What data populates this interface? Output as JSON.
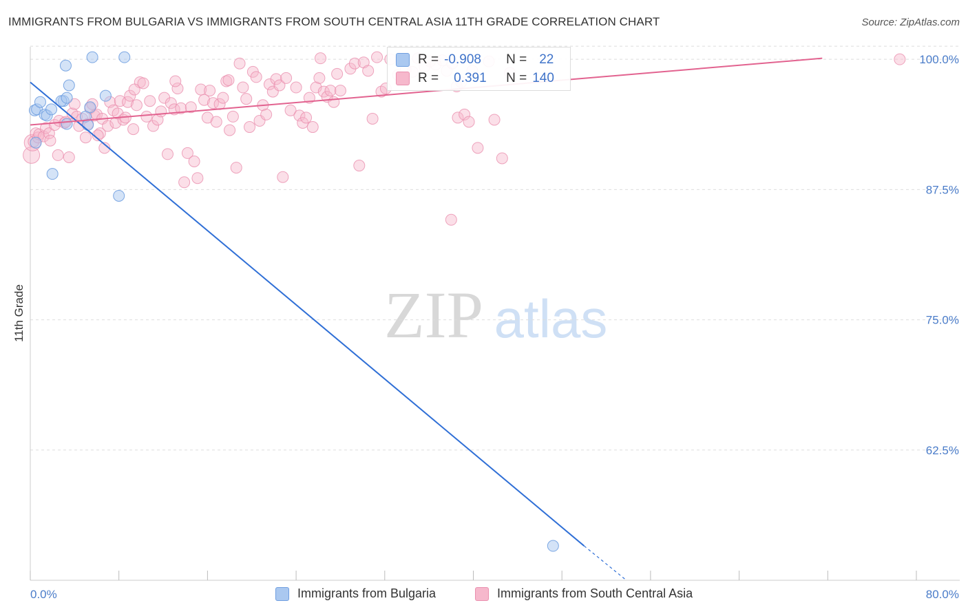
{
  "title": "IMMIGRANTS FROM BULGARIA VS IMMIGRANTS FROM SOUTH CENTRAL ASIA 11TH GRADE CORRELATION CHART",
  "source": "Source: ZipAtlas.com",
  "watermark": {
    "zip": "ZIP",
    "atlas": "atlas"
  },
  "colors": {
    "blue_fill": "#aac8f0",
    "blue_stroke": "#6f9ee0",
    "blue_line": "#2f6fd6",
    "pink_fill": "#f6b8cc",
    "pink_stroke": "#ea8fae",
    "pink_line": "#e2628f",
    "tick_label": "#4a7cc9",
    "grid": "#dddddd"
  },
  "inset_legend": {
    "rows": [
      {
        "r_label": "R =",
        "r_value": "-0.908",
        "n_label": "N =",
        "n_value": "22",
        "color": "blue"
      },
      {
        "r_label": "R =",
        "r_value": "0.391",
        "n_label": "N =",
        "n_value": "140",
        "color": "pink"
      }
    ]
  },
  "bottom_legend": [
    {
      "label": "Immigrants from Bulgaria",
      "color": "blue"
    },
    {
      "label": "Immigrants from South Central Asia",
      "color": "pink"
    }
  ],
  "chart_data": {
    "type": "scatter",
    "title": "IMMIGRANTS FROM BULGARIA VS IMMIGRANTS FROM SOUTH CENTRAL ASIA 11TH GRADE CORRELATION CHART",
    "xlabel": "",
    "ylabel": "11th Grade",
    "xlim": [
      0,
      80
    ],
    "ylim": [
      50,
      101.2
    ],
    "x_tick_labels": [
      "0.0%",
      "80.0%"
    ],
    "y_ticks": [
      {
        "value": 100,
        "label": "100.0%"
      },
      {
        "value": 87.5,
        "label": "87.5%"
      },
      {
        "value": 75,
        "label": "75.0%"
      },
      {
        "value": 62.5,
        "label": "62.5%"
      }
    ],
    "grid": true,
    "legend_position": "bottom",
    "series": [
      {
        "name": "Immigrants from Bulgaria",
        "color": "blue",
        "trend": {
          "x": [
            0,
            50
          ],
          "y": [
            97.8,
            53.3
          ],
          "dashed_to": {
            "x": 53.7,
            "y": 50.1
          }
        },
        "points": [
          [
            0.4,
            95.1
          ],
          [
            0.6,
            95.2
          ],
          [
            0.9,
            95.9
          ],
          [
            1.3,
            94.7
          ],
          [
            1.5,
            94.6
          ],
          [
            1.9,
            95.2
          ],
          [
            3.0,
            96.0
          ],
          [
            3.3,
            93.8
          ],
          [
            2.8,
            96.0
          ],
          [
            3.2,
            99.4
          ],
          [
            3.3,
            96.3
          ],
          [
            3.5,
            97.5
          ],
          [
            5.0,
            94.5
          ],
          [
            5.2,
            93.7
          ],
          [
            5.4,
            95.4
          ],
          [
            5.6,
            100.2
          ],
          [
            6.8,
            96.5
          ],
          [
            8.5,
            100.2
          ],
          [
            0.5,
            92.0
          ],
          [
            2.0,
            89.0
          ],
          [
            8.0,
            86.9
          ],
          [
            47.2,
            53.3
          ]
        ]
      },
      {
        "name": "Immigrants from South Central Asia",
        "color": "pink",
        "trend": {
          "x": [
            0,
            71.5
          ],
          "y": [
            93.7,
            100.1
          ]
        },
        "points": [
          [
            0.1,
            90.8
          ],
          [
            0.2,
            92.0
          ],
          [
            0.3,
            92.1
          ],
          [
            0.5,
            92.9
          ],
          [
            0.7,
            92.5
          ],
          [
            0.8,
            92.8
          ],
          [
            1.2,
            92.6
          ],
          [
            1.4,
            93.4
          ],
          [
            1.7,
            92.9
          ],
          [
            1.8,
            92.2
          ],
          [
            2.2,
            93.7
          ],
          [
            2.5,
            90.8
          ],
          [
            2.6,
            94.1
          ],
          [
            3.1,
            93.9
          ],
          [
            3.2,
            94.0
          ],
          [
            3.5,
            90.6
          ],
          [
            3.8,
            94.8
          ],
          [
            4.0,
            95.7
          ],
          [
            4.2,
            94.5
          ],
          [
            4.4,
            93.6
          ],
          [
            4.7,
            94.3
          ],
          [
            5.0,
            92.5
          ],
          [
            5.2,
            93.8
          ],
          [
            5.4,
            95.3
          ],
          [
            5.6,
            95.7
          ],
          [
            5.8,
            94.6
          ],
          [
            6.0,
            94.7
          ],
          [
            6.3,
            92.9
          ],
          [
            6.5,
            94.3
          ],
          [
            6.7,
            91.5
          ],
          [
            7.0,
            93.6
          ],
          [
            7.2,
            95.9
          ],
          [
            7.5,
            95.1
          ],
          [
            7.7,
            93.9
          ],
          [
            7.9,
            94.8
          ],
          [
            8.1,
            96.0
          ],
          [
            8.4,
            94.2
          ],
          [
            8.6,
            94.4
          ],
          [
            8.8,
            95.9
          ],
          [
            9.0,
            96.5
          ],
          [
            9.3,
            93.3
          ],
          [
            9.6,
            95.6
          ],
          [
            9.9,
            97.8
          ],
          [
            10.2,
            97.7
          ],
          [
            10.5,
            94.5
          ],
          [
            10.8,
            96.0
          ],
          [
            11.1,
            93.6
          ],
          [
            11.5,
            94.2
          ],
          [
            11.8,
            95.0
          ],
          [
            12.1,
            96.3
          ],
          [
            12.4,
            90.9
          ],
          [
            12.7,
            95.8
          ],
          [
            13.0,
            95.2
          ],
          [
            13.3,
            97.2
          ],
          [
            13.6,
            95.3
          ],
          [
            13.9,
            88.2
          ],
          [
            14.2,
            91.0
          ],
          [
            14.5,
            95.4
          ],
          [
            14.8,
            90.2
          ],
          [
            15.1,
            88.6
          ],
          [
            15.4,
            97.1
          ],
          [
            15.7,
            96.1
          ],
          [
            16.0,
            94.4
          ],
          [
            16.2,
            97.0
          ],
          [
            16.5,
            95.8
          ],
          [
            16.8,
            94.0
          ],
          [
            17.1,
            95.7
          ],
          [
            17.4,
            96.3
          ],
          [
            17.7,
            97.9
          ],
          [
            18.0,
            93.2
          ],
          [
            18.3,
            94.5
          ],
          [
            18.6,
            89.6
          ],
          [
            18.9,
            99.6
          ],
          [
            19.2,
            97.3
          ],
          [
            19.5,
            96.2
          ],
          [
            19.8,
            93.5
          ],
          [
            20.1,
            98.8
          ],
          [
            20.4,
            98.3
          ],
          [
            20.7,
            94.1
          ],
          [
            21.0,
            95.6
          ],
          [
            21.3,
            94.7
          ],
          [
            21.6,
            97.6
          ],
          [
            21.9,
            96.9
          ],
          [
            22.2,
            98.1
          ],
          [
            22.5,
            97.5
          ],
          [
            22.8,
            88.7
          ],
          [
            23.1,
            98.2
          ],
          [
            23.5,
            95.1
          ],
          [
            24.0,
            97.3
          ],
          [
            24.3,
            94.6
          ],
          [
            24.6,
            93.9
          ],
          [
            24.9,
            94.4
          ],
          [
            25.2,
            96.3
          ],
          [
            25.5,
            93.5
          ],
          [
            25.8,
            97.3
          ],
          [
            26.2,
            100.1
          ],
          [
            26.5,
            96.9
          ],
          [
            26.8,
            96.4
          ],
          [
            27.1,
            97.0
          ],
          [
            27.4,
            95.9
          ],
          [
            27.7,
            98.6
          ],
          [
            28.0,
            97.0
          ],
          [
            28.9,
            99.1
          ],
          [
            29.3,
            99.6
          ],
          [
            29.7,
            89.8
          ],
          [
            30.1,
            99.7
          ],
          [
            30.5,
            98.9
          ],
          [
            30.9,
            94.3
          ],
          [
            31.3,
            100.2
          ],
          [
            31.7,
            96.9
          ],
          [
            32.1,
            97.2
          ],
          [
            32.5,
            100.0
          ],
          [
            33.2,
            98.5
          ],
          [
            33.9,
            99.0
          ],
          [
            34.5,
            98.8
          ],
          [
            35.0,
            100.1
          ],
          [
            35.6,
            99.3
          ],
          [
            36.1,
            99.8
          ],
          [
            36.6,
            99.5
          ],
          [
            37.2,
            99.9
          ],
          [
            37.6,
            98.9
          ],
          [
            38.1,
            99.6
          ],
          [
            38.5,
            97.4
          ],
          [
            38.9,
            97.8
          ],
          [
            38.6,
            94.4
          ],
          [
            39.2,
            94.7
          ],
          [
            39.6,
            94.0
          ],
          [
            39.9,
            98.9
          ],
          [
            38.0,
            84.6
          ],
          [
            40.4,
            91.5
          ],
          [
            41.4,
            99.8
          ],
          [
            41.9,
            94.2
          ],
          [
            42.6,
            90.5
          ],
          [
            43.3,
            98.7
          ],
          [
            13.1,
            97.9
          ],
          [
            9.4,
            97.1
          ],
          [
            6.1,
            92.7
          ],
          [
            78.5,
            100.0
          ],
          [
            17.9,
            98.0
          ],
          [
            26.1,
            98.2
          ]
        ]
      }
    ]
  }
}
